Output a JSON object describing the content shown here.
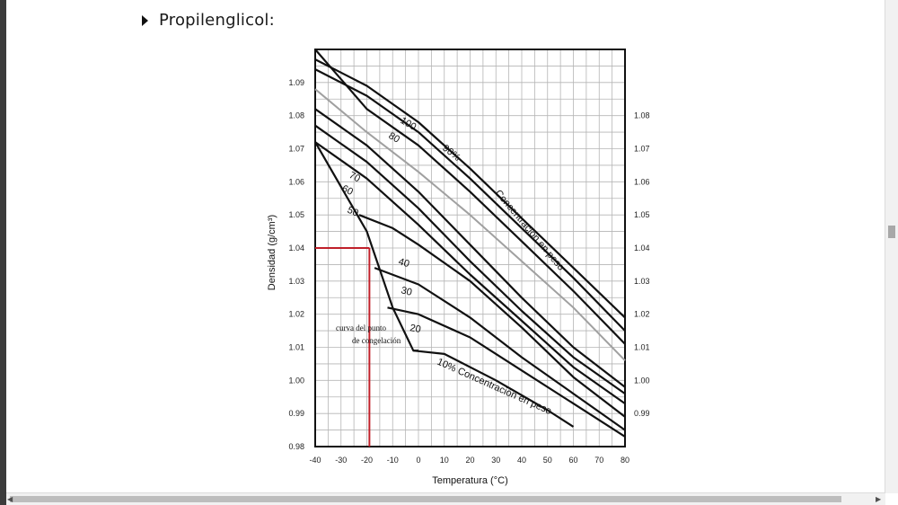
{
  "heading": {
    "text": "Propilenglicol:"
  },
  "chart_data": {
    "type": "line",
    "title": "",
    "xlabel": "Temperatura (°C)",
    "ylabel": "Densidad (g/cm³)",
    "xlim": [
      -40,
      80
    ],
    "ylim": [
      0.98,
      1.1
    ],
    "x_ticks": [
      "-40",
      "-30",
      "-20",
      "-10",
      "0",
      "10",
      "20",
      "30",
      "40",
      "50",
      "60",
      "70",
      "80"
    ],
    "y_ticks_left": [
      "1.09",
      "1.08",
      "1.07",
      "1.06",
      "1.05",
      "1.04",
      "1.03",
      "1.02",
      "1.01",
      "1.00",
      "0.99",
      "0.98"
    ],
    "y_ticks_right": [
      "1.08",
      "1.07",
      "1.06",
      "1.05",
      "1.04",
      "1.03",
      "1.02",
      "1.01",
      "1.00",
      "0.99"
    ],
    "grid": true,
    "series": [
      {
        "name": "100",
        "points": [
          [
            -40,
            1.097
          ],
          [
            -20,
            1.089
          ],
          [
            0,
            1.078
          ],
          [
            20,
            1.064
          ],
          [
            40,
            1.049
          ],
          [
            60,
            1.034
          ],
          [
            80,
            1.019
          ]
        ]
      },
      {
        "name": "90%",
        "points": [
          [
            -40,
            1.094
          ],
          [
            -20,
            1.086
          ],
          [
            0,
            1.075
          ],
          [
            20,
            1.061
          ],
          [
            40,
            1.046
          ],
          [
            60,
            1.031
          ],
          [
            80,
            1.015
          ]
        ]
      },
      {
        "name": "80",
        "points": [
          [
            -40,
            1.1
          ],
          [
            -20,
            1.082
          ],
          [
            0,
            1.071
          ],
          [
            20,
            1.057
          ],
          [
            40,
            1.042
          ],
          [
            60,
            1.027
          ],
          [
            80,
            1.011
          ]
        ]
      },
      {
        "name": "",
        "points": [
          [
            -40,
            1.088
          ],
          [
            -20,
            1.075
          ],
          [
            0,
            1.063
          ],
          [
            20,
            1.05
          ],
          [
            40,
            1.036
          ],
          [
            60,
            1.022
          ],
          [
            80,
            1.006
          ]
        ]
      },
      {
        "name": "70",
        "points": [
          [
            -40,
            1.082
          ],
          [
            -20,
            1.071
          ],
          [
            0,
            1.057
          ],
          [
            20,
            1.041
          ],
          [
            40,
            1.025
          ],
          [
            60,
            1.01
          ],
          [
            80,
            0.998
          ]
        ]
      },
      {
        "name": "60",
        "points": [
          [
            -40,
            1.077
          ],
          [
            -20,
            1.066
          ],
          [
            0,
            1.052
          ],
          [
            20,
            1.036
          ],
          [
            40,
            1.021
          ],
          [
            60,
            1.007
          ],
          [
            80,
            0.996
          ]
        ]
      },
      {
        "name": "50",
        "points": [
          [
            -40,
            1.072
          ],
          [
            -20,
            1.061
          ],
          [
            0,
            1.047
          ],
          [
            20,
            1.032
          ],
          [
            40,
            1.018
          ],
          [
            60,
            1.004
          ],
          [
            80,
            0.993
          ]
        ]
      },
      {
        "name": "40",
        "points": [
          [
            -23,
            1.05
          ],
          [
            -10,
            1.046
          ],
          [
            0,
            1.041
          ],
          [
            20,
            1.03
          ],
          [
            40,
            1.016
          ],
          [
            60,
            1.001
          ],
          [
            80,
            0.989
          ]
        ]
      },
      {
        "name": "30",
        "points": [
          [
            -17,
            1.034
          ],
          [
            0,
            1.029
          ],
          [
            20,
            1.019
          ],
          [
            40,
            1.007
          ],
          [
            60,
            0.996
          ],
          [
            80,
            0.985
          ]
        ]
      },
      {
        "name": "20",
        "points": [
          [
            -12,
            1.022
          ],
          [
            0,
            1.02
          ],
          [
            20,
            1.013
          ],
          [
            40,
            1.003
          ],
          [
            60,
            0.993
          ],
          [
            80,
            0.983
          ]
        ]
      },
      {
        "name": "10% Concentración en peso",
        "points": [
          [
            -2,
            1.009
          ],
          [
            10,
            1.008
          ],
          [
            30,
            1.0
          ],
          [
            50,
            0.991
          ],
          [
            60,
            0.986
          ]
        ]
      },
      {
        "name": "curva del punto de congelación",
        "points": [
          [
            -40,
            1.072
          ],
          [
            -20,
            1.045
          ],
          [
            -10,
            1.022
          ],
          [
            -2,
            1.009
          ],
          [
            0,
            1.009
          ]
        ]
      }
    ],
    "annotations": [
      {
        "text": "Concentración en peso",
        "x": 48,
        "y": 1.047
      },
      {
        "text": "curva del punto",
        "x": -23,
        "y": 1.023
      },
      {
        "text": "de congelación",
        "x": -23,
        "y": 1.019
      }
    ],
    "reference": {
      "x": -19,
      "y": 1.04,
      "color": "#c0202a"
    },
    "colors": {
      "lines": "#111111",
      "freezing_reference": "#c0202a",
      "grey_series": "#a0a0a0"
    }
  }
}
